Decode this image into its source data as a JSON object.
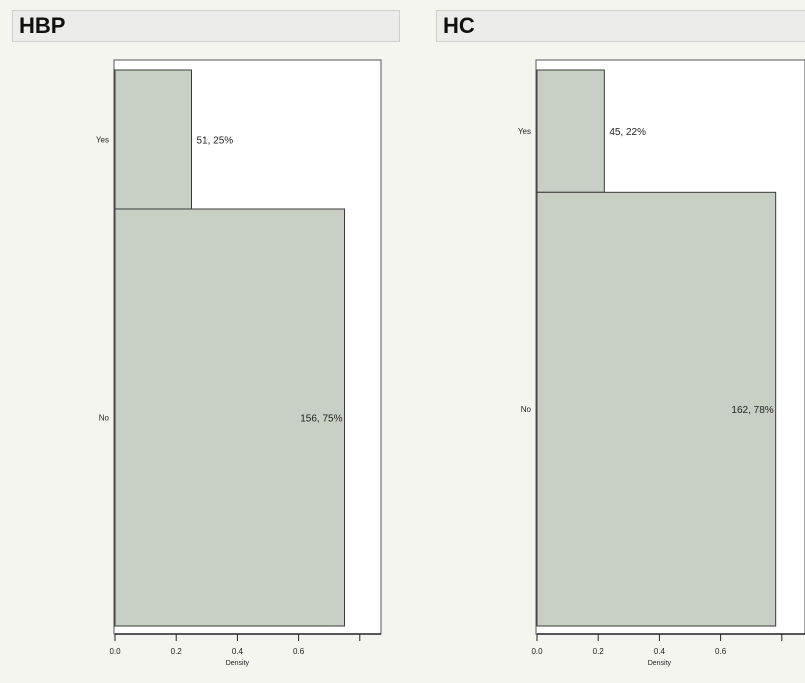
{
  "panels": [
    {
      "title": "HBP",
      "chart_data": {
        "type": "bar",
        "orientation": "horizontal",
        "categories": [
          "Yes",
          "No"
        ],
        "values": [
          0.25,
          0.75
        ],
        "data_labels": [
          "51, 25%",
          "156, 75%"
        ],
        "xlabel": "Density",
        "xlim": [
          0,
          0.8
        ],
        "xticks": [
          "0.0",
          "0.2",
          "0.4",
          "0.6"
        ],
        "grid": false,
        "bar_color": "#c8d0c6"
      }
    },
    {
      "title": "HC",
      "chart_data": {
        "type": "bar",
        "orientation": "horizontal",
        "categories": [
          "Yes",
          "No"
        ],
        "values": [
          0.22,
          0.78
        ],
        "data_labels": [
          "45, 22%",
          "162, 78%"
        ],
        "xlabel": "Density",
        "xlim": [
          0,
          0.8
        ],
        "xticks": [
          "0.0",
          "0.2",
          "0.4",
          "0.6"
        ],
        "grid": false,
        "bar_color": "#c8d0c6"
      }
    }
  ]
}
